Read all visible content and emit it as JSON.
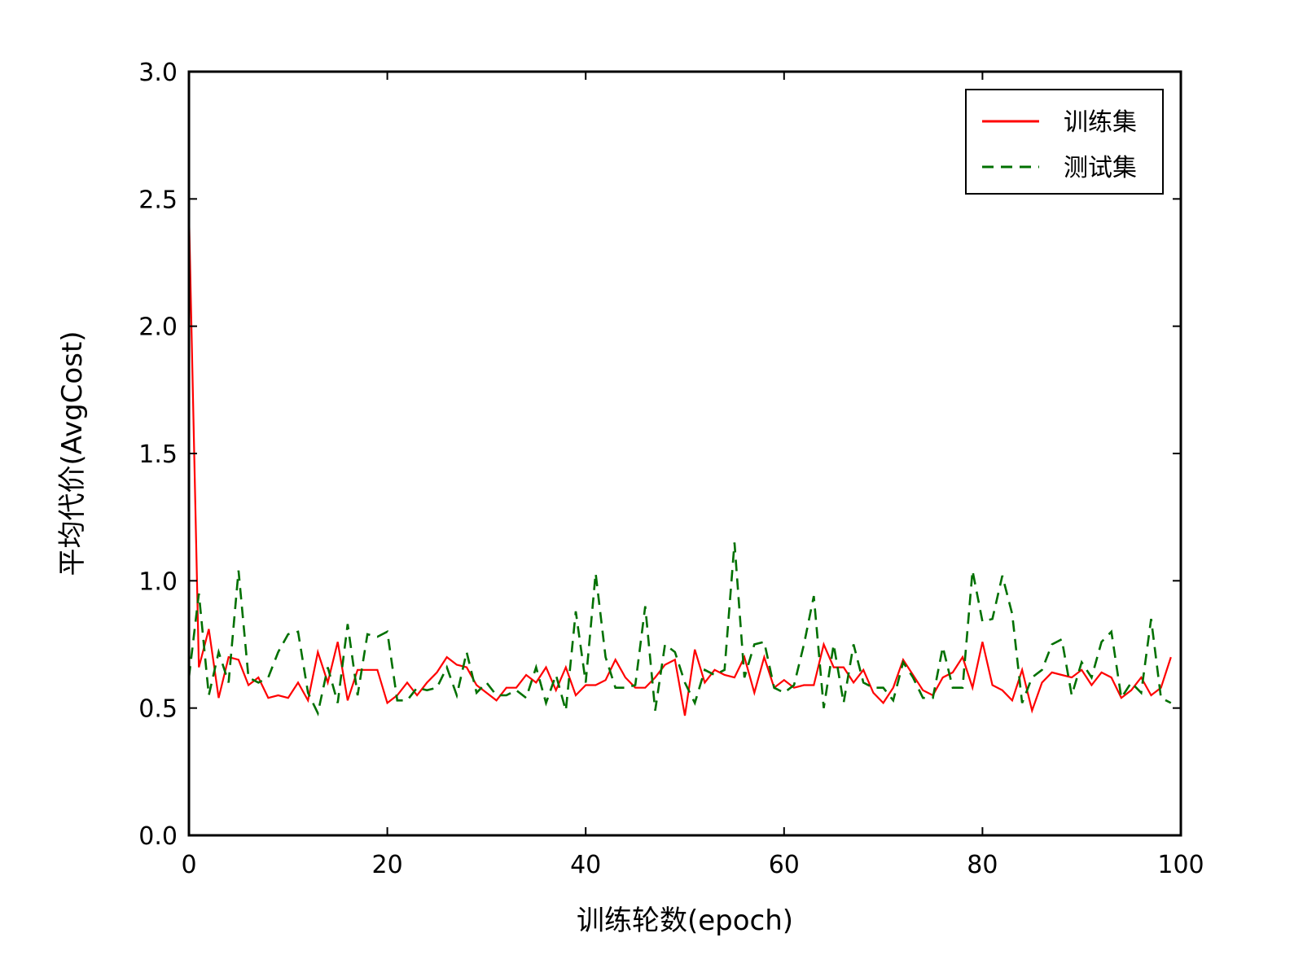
{
  "chart_data": {
    "type": "line",
    "xlabel": "训练轮数(epoch)",
    "ylabel": "平均代价(AvgCost)",
    "xlim": [
      0,
      100
    ],
    "ylim": [
      0,
      3
    ],
    "xticks": [
      0,
      20,
      40,
      60,
      80,
      100
    ],
    "yticks": [
      0,
      0.5,
      1,
      1.5,
      2,
      2.5,
      3
    ],
    "xtick_labels": [
      "0",
      "20",
      "40",
      "60",
      "80",
      "100"
    ],
    "ytick_labels": [
      "0.0",
      "0.5",
      "1.0",
      "1.5",
      "2.0",
      "2.5",
      "3.0"
    ],
    "grid": false,
    "legend_position": "top-right",
    "series": [
      {
        "name": "训练集",
        "color": "#ff0000",
        "style": "solid",
        "x": [
          0,
          1,
          2,
          3,
          4,
          5,
          6,
          7,
          8,
          9,
          10,
          11,
          12,
          13,
          14,
          15,
          16,
          17,
          18,
          19,
          20,
          21,
          22,
          23,
          24,
          25,
          26,
          27,
          28,
          29,
          30,
          31,
          32,
          33,
          34,
          35,
          36,
          37,
          38,
          39,
          40,
          41,
          42,
          43,
          44,
          45,
          46,
          47,
          48,
          49,
          50,
          51,
          52,
          53,
          54,
          55,
          56,
          57,
          58,
          59,
          60,
          61,
          62,
          63,
          64,
          65,
          66,
          67,
          68,
          69,
          70,
          71,
          72,
          73,
          74,
          75,
          76,
          77,
          78,
          79,
          80,
          81,
          82,
          83,
          84,
          85,
          86,
          87,
          88,
          89,
          90,
          91,
          92,
          93,
          94,
          95,
          96,
          97,
          98,
          99
        ],
        "values": [
          2.45,
          0.66,
          0.81,
          0.54,
          0.7,
          0.69,
          0.59,
          0.62,
          0.54,
          0.55,
          0.54,
          0.6,
          0.53,
          0.72,
          0.6,
          0.76,
          0.53,
          0.65,
          0.65,
          0.65,
          0.52,
          0.55,
          0.6,
          0.55,
          0.6,
          0.64,
          0.7,
          0.67,
          0.66,
          0.59,
          0.56,
          0.53,
          0.58,
          0.58,
          0.63,
          0.6,
          0.66,
          0.57,
          0.66,
          0.55,
          0.59,
          0.59,
          0.61,
          0.69,
          0.62,
          0.58,
          0.58,
          0.62,
          0.67,
          0.69,
          0.47,
          0.73,
          0.6,
          0.65,
          0.63,
          0.62,
          0.7,
          0.56,
          0.7,
          0.58,
          0.61,
          0.58,
          0.59,
          0.59,
          0.75,
          0.66,
          0.66,
          0.6,
          0.65,
          0.56,
          0.52,
          0.58,
          0.69,
          0.63,
          0.57,
          0.55,
          0.62,
          0.64,
          0.7,
          0.58,
          0.76,
          0.59,
          0.57,
          0.53,
          0.65,
          0.49,
          0.6,
          0.64,
          0.63,
          0.62,
          0.65,
          0.59,
          0.64,
          0.62,
          0.54,
          0.57,
          0.62,
          0.55,
          0.58,
          0.7
        ]
      },
      {
        "name": "测试集",
        "color": "#007000",
        "style": "dashed",
        "x": [
          0,
          1,
          2,
          3,
          4,
          5,
          6,
          7,
          8,
          9,
          10,
          11,
          12,
          13,
          14,
          15,
          16,
          17,
          18,
          19,
          20,
          21,
          22,
          23,
          24,
          25,
          26,
          27,
          28,
          29,
          30,
          31,
          32,
          33,
          34,
          35,
          36,
          37,
          38,
          39,
          40,
          41,
          42,
          43,
          44,
          45,
          46,
          47,
          48,
          49,
          50,
          51,
          52,
          53,
          54,
          55,
          56,
          57,
          58,
          59,
          60,
          61,
          62,
          63,
          64,
          65,
          66,
          67,
          68,
          69,
          70,
          71,
          72,
          73,
          74,
          75,
          76,
          77,
          78,
          79,
          80,
          81,
          82,
          83,
          84,
          85,
          86,
          87,
          88,
          89,
          90,
          91,
          92,
          93,
          94,
          95,
          96,
          97,
          98,
          99
        ],
        "values": [
          0.62,
          0.95,
          0.55,
          0.72,
          0.6,
          1.04,
          0.62,
          0.6,
          0.62,
          0.72,
          0.79,
          0.8,
          0.56,
          0.48,
          0.66,
          0.52,
          0.83,
          0.55,
          0.79,
          0.78,
          0.8,
          0.53,
          0.53,
          0.58,
          0.57,
          0.58,
          0.66,
          0.55,
          0.72,
          0.56,
          0.6,
          0.55,
          0.55,
          0.57,
          0.54,
          0.66,
          0.52,
          0.63,
          0.49,
          0.88,
          0.6,
          1.03,
          0.7,
          0.58,
          0.58,
          0.59,
          0.9,
          0.49,
          0.75,
          0.72,
          0.6,
          0.52,
          0.65,
          0.63,
          0.65,
          1.15,
          0.62,
          0.75,
          0.76,
          0.58,
          0.56,
          0.59,
          0.75,
          0.94,
          0.5,
          0.75,
          0.52,
          0.75,
          0.6,
          0.58,
          0.58,
          0.53,
          0.68,
          0.62,
          0.54,
          0.54,
          0.74,
          0.58,
          0.58,
          1.04,
          0.84,
          0.85,
          1.02,
          0.87,
          0.52,
          0.62,
          0.65,
          0.75,
          0.77,
          0.55,
          0.68,
          0.62,
          0.76,
          0.8,
          0.54,
          0.6,
          0.56,
          0.85,
          0.54,
          0.52
        ]
      }
    ]
  }
}
